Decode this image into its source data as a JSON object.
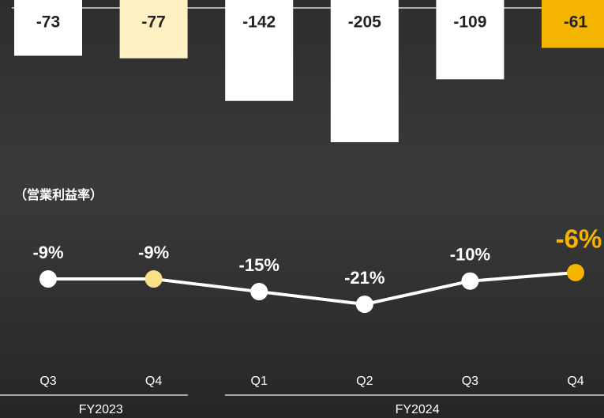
{
  "chart_data": [
    {
      "type": "bar",
      "values": [
        -73,
        -77,
        -142,
        -205,
        -109,
        -61
      ],
      "colors": [
        "#ffffff",
        "#fdf0c2",
        "#ffffff",
        "#ffffff",
        "#ffffff",
        "#f5b400"
      ]
    },
    {
      "type": "line",
      "title": "（営業利益率）",
      "values": [
        -9,
        -9,
        -15,
        -21,
        -10,
        -6
      ],
      "value_labels": [
        "-9%",
        "-9%",
        "-15%",
        "-21%",
        "-10%",
        "-6%"
      ],
      "color": "#ffffff",
      "point_colors": [
        "#ffffff",
        "#fbe08a",
        "#ffffff",
        "#ffffff",
        "#ffffff",
        "#f5b400"
      ],
      "label_colors": [
        "#ffffff",
        "#ffffff",
        "#ffffff",
        "#ffffff",
        "#ffffff",
        "#f5b400"
      ]
    }
  ],
  "x_axis": {
    "groups": [
      {
        "name": "FY2023",
        "categories": [
          "Q3",
          "Q4"
        ]
      },
      {
        "name": "FY2024",
        "categories": [
          "Q1",
          "Q2",
          "Q3",
          "Q4"
        ]
      }
    ]
  }
}
